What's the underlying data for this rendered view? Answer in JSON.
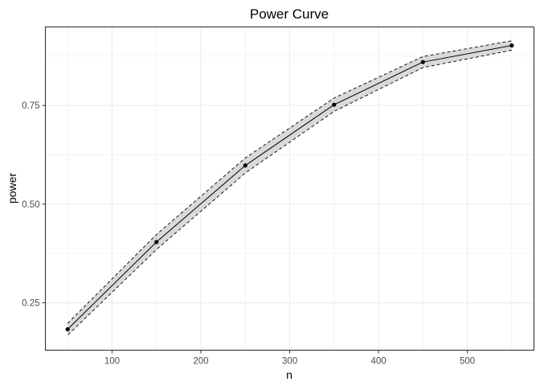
{
  "chart_data": {
    "type": "line",
    "title": "Power Curve",
    "xlabel": "n",
    "ylabel": "power",
    "xlim": [
      25,
      575
    ],
    "ylim": [
      0.13,
      0.949
    ],
    "x_ticks": [
      100,
      200,
      300,
      400,
      500
    ],
    "x_tick_labels": [
      "100",
      "200",
      "300",
      "400",
      "500"
    ],
    "y_ticks": [
      0.25,
      0.5,
      0.75
    ],
    "y_tick_labels": [
      "0.25",
      "0.50",
      "0.75"
    ],
    "grid": true,
    "x": [
      50,
      150,
      250,
      350,
      450,
      550
    ],
    "series": [
      {
        "values": [
          0.183,
          0.404,
          0.598,
          0.752,
          0.86,
          0.902
        ],
        "lower": [
          0.168,
          0.385,
          0.579,
          0.735,
          0.846,
          0.89
        ],
        "upper": [
          0.198,
          0.423,
          0.617,
          0.769,
          0.874,
          0.914
        ]
      }
    ],
    "colors": {
      "line": "#000000",
      "band": "#d9d9d9",
      "grid": "#ebebeb",
      "panel_border": "#333333"
    }
  }
}
